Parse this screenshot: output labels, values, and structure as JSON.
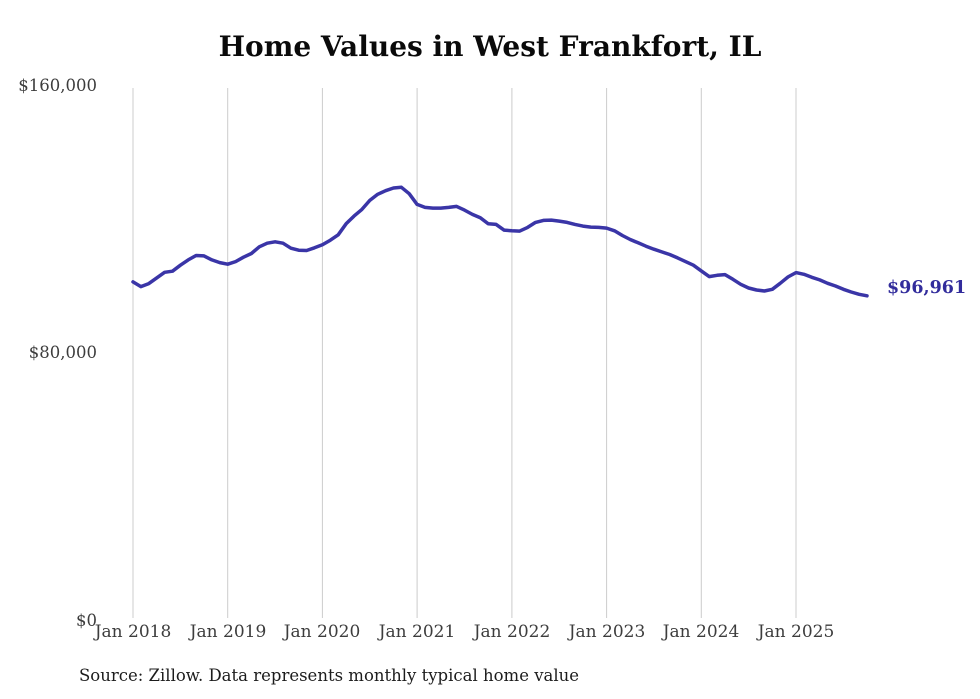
{
  "title": "Home Values in West Frankfort, IL",
  "source_note": "Source: Zillow. Data represents monthly typical home value",
  "colors": {
    "line": "#3a35a7",
    "end_label": "#322c9c",
    "gridline": "#cccccc",
    "tick_text": "#3d3d3d",
    "title_text": "#0a0a0a"
  },
  "chart_data": {
    "type": "line",
    "title": "Home Values in West Frankfort, IL",
    "xlabel": "",
    "ylabel": "",
    "ylim": [
      0,
      160000
    ],
    "yticks": [
      160000,
      80000,
      0
    ],
    "ytick_labels": [
      "$160,000",
      "$80,000",
      "$0"
    ],
    "xtick_labels": [
      "Jan 2018",
      "Jan 2019",
      "Jan 2020",
      "Jan 2021",
      "Jan 2022",
      "Jan 2023",
      "Jan 2024",
      "Jan 2025"
    ],
    "x_start": "2018-01",
    "x_end": "2025-10",
    "x_frequency": "monthly",
    "grid": "vertical-only",
    "legend_position": "none",
    "end_label": "$96,961",
    "last_value": 96961,
    "series": [
      {
        "name": "Typical home value",
        "values": [
          101100,
          99700,
          100600,
          102300,
          104000,
          104300,
          106100,
          107700,
          109000,
          108900,
          107700,
          106900,
          106400,
          107200,
          108500,
          109600,
          111600,
          112700,
          113100,
          112700,
          111200,
          110600,
          110500,
          111300,
          112200,
          113600,
          115200,
          118500,
          120800,
          122800,
          125500,
          127300,
          128400,
          129200,
          129400,
          127500,
          124300,
          123400,
          123200,
          123200,
          123400,
          123700,
          122600,
          121300,
          120300,
          118500,
          118300,
          116600,
          116400,
          116300,
          117400,
          118900,
          119500,
          119600,
          119300,
          118900,
          118300,
          117800,
          117500,
          117400,
          117200,
          116400,
          115000,
          113800,
          112800,
          111800,
          110900,
          110100,
          109300,
          108300,
          107200,
          106100,
          104400,
          102700,
          103100,
          103300,
          101900,
          100400,
          99300,
          98700,
          98400,
          98900,
          100700,
          102600,
          103900,
          103400,
          102500,
          101700,
          100700,
          99900,
          98900,
          98100,
          97400,
          96961
        ]
      }
    ]
  }
}
